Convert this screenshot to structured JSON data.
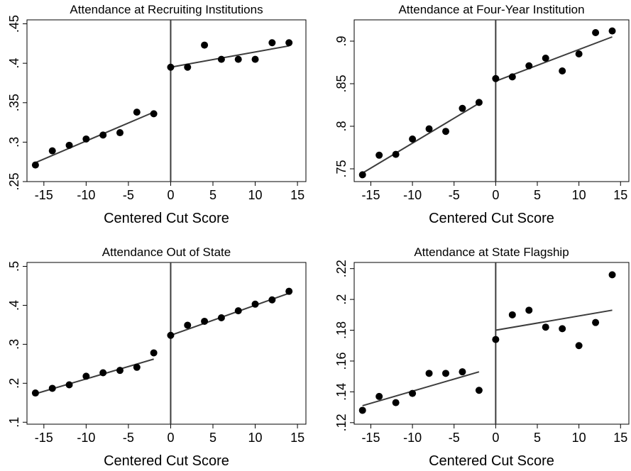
{
  "chart_data": [
    {
      "type": "scatter",
      "title": "Attendance at Recruiting Institutions",
      "xlabel": "Centered Cut Score",
      "ylabel": "",
      "xlim": [
        -17,
        16
      ],
      "ylim": [
        0.25,
        0.455
      ],
      "xticks": [
        -15,
        -10,
        -5,
        0,
        5,
        10,
        15
      ],
      "xtick_labels": [
        "-15",
        "-10",
        "-5",
        "0",
        "5",
        "10",
        "15"
      ],
      "yticks": [
        0.25,
        0.3,
        0.35,
        0.4,
        0.45
      ],
      "ytick_labels": [
        ".25",
        ".3",
        ".35",
        ".4",
        ".45"
      ],
      "cutoff": 0,
      "points": {
        "x": [
          -16,
          -14,
          -12,
          -10,
          -8,
          -6,
          -4,
          -2,
          0,
          2,
          4,
          6,
          8,
          10,
          12,
          14
        ],
        "y": [
          0.271,
          0.289,
          0.296,
          0.304,
          0.309,
          0.312,
          0.338,
          0.336,
          0.395,
          0.395,
          0.423,
          0.405,
          0.405,
          0.405,
          0.426,
          0.426
        ]
      },
      "fit_left": {
        "x": [
          -16,
          -2
        ],
        "y": [
          0.274,
          0.338
        ]
      },
      "fit_right": {
        "x": [
          0,
          14
        ],
        "y": [
          0.395,
          0.422
        ]
      },
      "grid": false
    },
    {
      "type": "scatter",
      "title": "Attendance at Four-Year Institution",
      "xlabel": "Centered Cut Score",
      "ylabel": "",
      "xlim": [
        -17,
        16
      ],
      "ylim": [
        0.735,
        0.925
      ],
      "xticks": [
        -15,
        -10,
        -5,
        0,
        5,
        10,
        15
      ],
      "xtick_labels": [
        "-15",
        "-10",
        "-5",
        "0",
        "5",
        "10",
        "15"
      ],
      "yticks": [
        0.75,
        0.8,
        0.85,
        0.9
      ],
      "ytick_labels": [
        ".75",
        ".8",
        ".85",
        ".9"
      ],
      "cutoff": 0,
      "points": {
        "x": [
          -16,
          -14,
          -12,
          -10,
          -8,
          -6,
          -4,
          -2,
          0,
          2,
          4,
          6,
          8,
          10,
          12,
          14
        ],
        "y": [
          0.743,
          0.766,
          0.767,
          0.785,
          0.797,
          0.794,
          0.821,
          0.828,
          0.856,
          0.858,
          0.871,
          0.88,
          0.865,
          0.885,
          0.91,
          0.912
        ]
      },
      "fit_left": {
        "x": [
          -16,
          -2
        ],
        "y": [
          0.745,
          0.827
        ]
      },
      "fit_right": {
        "x": [
          0,
          14
        ],
        "y": [
          0.853,
          0.905
        ]
      },
      "grid": false
    },
    {
      "type": "scatter",
      "title": "Attendance Out of State",
      "xlabel": "Centered Cut Score",
      "ylabel": "",
      "xlim": [
        -17,
        16
      ],
      "ylim": [
        0.095,
        0.51
      ],
      "xticks": [
        -15,
        -10,
        -5,
        0,
        5,
        10,
        15
      ],
      "xtick_labels": [
        "-15",
        "-10",
        "-5",
        "0",
        "5",
        "10",
        "15"
      ],
      "yticks": [
        0.1,
        0.2,
        0.3,
        0.4,
        0.5
      ],
      "ytick_labels": [
        ".1",
        ".2",
        ".3",
        ".4",
        ".5"
      ],
      "cutoff": 0,
      "points": {
        "x": [
          -16,
          -14,
          -12,
          -10,
          -8,
          -6,
          -4,
          -2,
          0,
          2,
          4,
          6,
          8,
          10,
          12,
          14
        ],
        "y": [
          0.175,
          0.187,
          0.196,
          0.218,
          0.227,
          0.233,
          0.241,
          0.278,
          0.323,
          0.349,
          0.359,
          0.368,
          0.386,
          0.403,
          0.414,
          0.436
        ]
      },
      "fit_left": {
        "x": [
          -16,
          -2
        ],
        "y": [
          0.173,
          0.262
        ]
      },
      "fit_right": {
        "x": [
          0,
          14
        ],
        "y": [
          0.323,
          0.431
        ]
      },
      "grid": false
    },
    {
      "type": "scatter",
      "title": "Attendance at State Flagship",
      "xlabel": "Centered Cut Score",
      "ylabel": "",
      "xlim": [
        -17,
        16
      ],
      "ylim": [
        0.119,
        0.224
      ],
      "xticks": [
        -15,
        -10,
        -5,
        0,
        5,
        10,
        15
      ],
      "xtick_labels": [
        "-15",
        "-10",
        "-5",
        "0",
        "5",
        "10",
        "15"
      ],
      "yticks": [
        0.12,
        0.14,
        0.16,
        0.18,
        0.2,
        0.22
      ],
      "ytick_labels": [
        ".12",
        ".14",
        ".16",
        ".18",
        ".2",
        ".22"
      ],
      "cutoff": 0,
      "points": {
        "x": [
          -16,
          -14,
          -12,
          -10,
          -8,
          -6,
          -4,
          -2,
          0,
          2,
          4,
          6,
          8,
          10,
          12,
          14
        ],
        "y": [
          0.128,
          0.137,
          0.133,
          0.139,
          0.152,
          0.152,
          0.153,
          0.141,
          0.174,
          0.19,
          0.193,
          0.182,
          0.181,
          0.17,
          0.185,
          0.216
        ]
      },
      "fit_left": {
        "x": [
          -16,
          -2
        ],
        "y": [
          0.131,
          0.153
        ]
      },
      "fit_right": {
        "x": [
          0,
          14
        ],
        "y": [
          0.18,
          0.193
        ]
      },
      "grid": false
    }
  ],
  "colors": {
    "points": "#000000",
    "fit_line": "#3c3c3c",
    "cutoff_line": "#3c3c3c",
    "axes": "#000000"
  }
}
